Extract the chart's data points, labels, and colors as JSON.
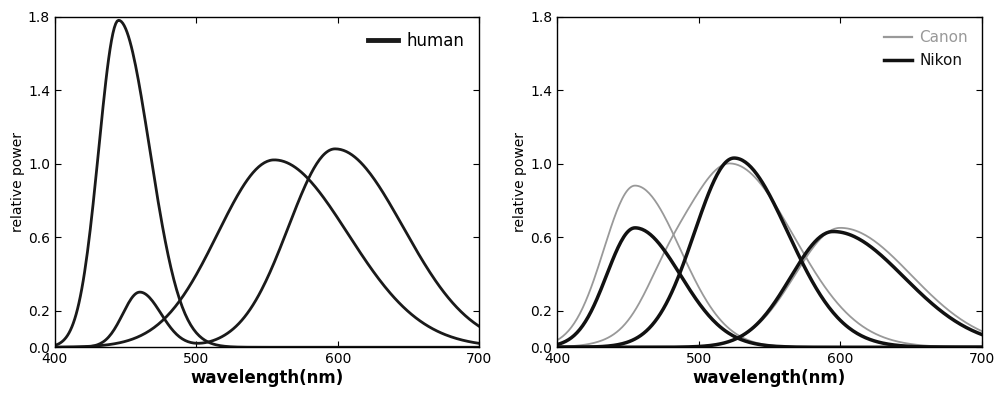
{
  "xlim": [
    400,
    700
  ],
  "ylim": [
    0,
    1.8
  ],
  "yticks": [
    0,
    0.2,
    0.6,
    1.0,
    1.4,
    1.8
  ],
  "xticks": [
    400,
    500,
    600,
    700
  ],
  "xlabel": "wavelength(nm)",
  "ylabel": "relative power",
  "bg_color": "#ffffff",
  "line_color": "#1a1a1a",
  "canon_color": "#999999",
  "nikon_color": "#111111",
  "human_lw": 2.0,
  "canon_lw": 1.3,
  "nikon_lw": 2.5
}
